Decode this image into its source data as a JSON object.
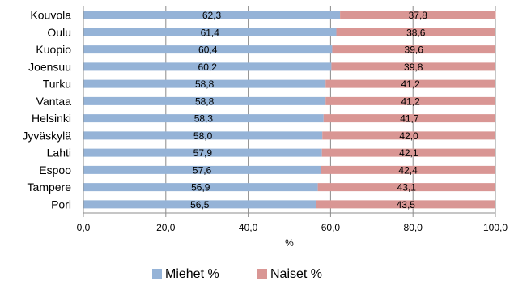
{
  "chart_data": {
    "type": "bar",
    "orientation": "horizontal",
    "stacked": "percent",
    "categories": [
      "Kouvola",
      "Oulu",
      "Kuopio",
      "Joensuu",
      "Turku",
      "Vantaa",
      "Helsinki",
      "Jyväskylä",
      "Lahti",
      "Espoo",
      "Tampere",
      "Pori"
    ],
    "series": [
      {
        "name": "Miehet %",
        "color": "#95b3d7",
        "values": [
          62.3,
          61.4,
          60.4,
          60.2,
          58.8,
          58.8,
          58.3,
          58.0,
          57.9,
          57.6,
          56.9,
          56.5
        ],
        "labels": [
          "62,3",
          "61,4",
          "60,4",
          "60,2",
          "58,8",
          "58,8",
          "58,3",
          "58,0",
          "57,9",
          "57,6",
          "56,9",
          "56,5"
        ]
      },
      {
        "name": "Naiset %",
        "color": "#d99694",
        "values": [
          37.8,
          38.6,
          39.6,
          39.8,
          41.2,
          41.2,
          41.7,
          42.0,
          42.1,
          42.4,
          43.1,
          43.5
        ],
        "labels": [
          "37,8",
          "38,6",
          "39,6",
          "39,8",
          "41,2",
          "41,2",
          "41,7",
          "42,0",
          "42,1",
          "42,4",
          "43,1",
          "43,5"
        ]
      }
    ],
    "xlim": [
      0,
      100
    ],
    "xticks": [
      "0,0",
      "20,0",
      "40,0",
      "60,0",
      "80,0",
      "100,0"
    ],
    "xlabel": "%",
    "ylabel": "",
    "title": "",
    "grid": "vertical",
    "legend": "bottom"
  }
}
